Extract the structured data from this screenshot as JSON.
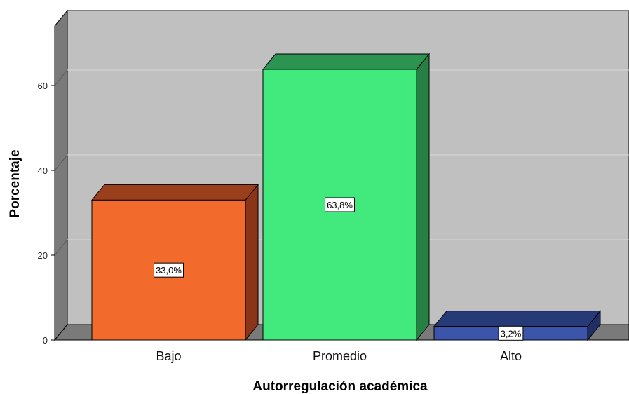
{
  "chart_data": {
    "type": "bar",
    "title": "",
    "xlabel": "Autorregulación académica",
    "ylabel": "Porcentaje",
    "categories": [
      "Bajo",
      "Promedio",
      "Alto"
    ],
    "values": [
      33.0,
      63.8,
      3.2
    ],
    "data_labels": [
      "33,0%",
      "63,8%",
      "3,2%"
    ],
    "colors": {
      "front": [
        "#f26a2c",
        "#42ea7e",
        "#3a55aa"
      ],
      "top": [
        "#9a3f1c",
        "#2c9450",
        "#263a78"
      ],
      "side": [
        "#8a3518",
        "#268044",
        "#1f2f66"
      ]
    },
    "ylim": [
      0,
      70
    ],
    "yticks": [
      0,
      20,
      40,
      60
    ],
    "grid": true,
    "style": "3d-bar",
    "background": {
      "back_wall": "#c0c0c0",
      "side_wall": "#7a7a7a",
      "floor": "#7a7a7a",
      "gridline": "#d8d8d8"
    }
  }
}
